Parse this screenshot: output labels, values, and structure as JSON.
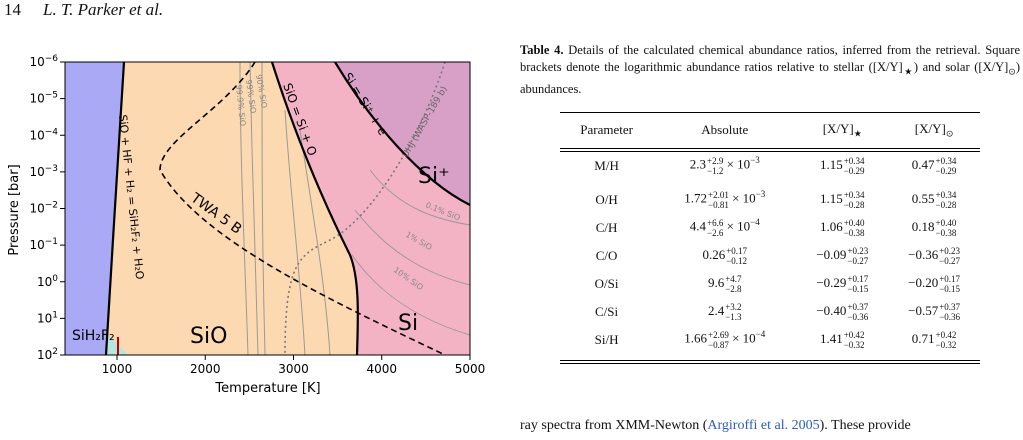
{
  "header": {
    "page": "14",
    "authors": "L. T. Parker et al."
  },
  "figure": {
    "x_label": "Temperature [K]",
    "y_label": "Pressure [bar]",
    "x_ticks": [
      "1000",
      "2000",
      "3000",
      "4000",
      "5000"
    ],
    "y_ticks": [
      {
        "base": "10",
        "exp": "−6"
      },
      {
        "base": "10",
        "exp": "−5"
      },
      {
        "base": "10",
        "exp": "−4"
      },
      {
        "base": "10",
        "exp": "−3"
      },
      {
        "base": "10",
        "exp": "−2"
      },
      {
        "base": "10",
        "exp": "−1"
      },
      {
        "base": "10",
        "exp": "0"
      },
      {
        "base": "10",
        "exp": "1"
      },
      {
        "base": "10",
        "exp": "2"
      }
    ],
    "region_labels": {
      "sih2f2": "SiH₂F₂",
      "sio": "SiO",
      "si": "Si",
      "si_plus": "Si⁺"
    },
    "curve_labels": {
      "reaction_f": "SiO + HF + H₂ = SiH₂F₂ + H₂O",
      "twa": "TWA 5 B",
      "reaction_o": "SiO = Si + O",
      "reaction_ion": "Si = Si⁺ + e⁻",
      "uhj": "UHJ (WASP-189 b)"
    },
    "contour_labels": [
      "90% SiO",
      "99% SiO",
      "99.9% SiO",
      "0.1% SiO",
      "1% SiO",
      "10% SiO"
    ]
  },
  "table": {
    "caption": {
      "label": "Table 4.",
      "text": [
        "Details of the calculated chemical abundance ratios, inferred from the retrieval. Square brackets denote the logarithmic abundance ratios relative to stellar ([X/Y]",
        "★",
        ") and solar ([X/Y]",
        "⊙",
        ") abundances."
      ]
    },
    "columns": [
      {
        "text": "Parameter"
      },
      {
        "text": "Absolute"
      },
      {
        "text": "[X/Y]",
        "sub": "★"
      },
      {
        "text": "[X/Y]",
        "sub": "⊙"
      }
    ],
    "rows": [
      {
        "param": "M/H",
        "absolute": {
          "value": "2.3",
          "up": "+2.9",
          "down": "−1.2",
          "times": " × 10",
          "exp": "−3"
        },
        "star": {
          "value": "1.15",
          "up": "+0.34",
          "down": "−0.29"
        },
        "sun": {
          "value": "0.47",
          "up": "+0.34",
          "down": "−0.29"
        }
      },
      {
        "param": "O/H",
        "absolute": {
          "value": "1.72",
          "up": "+2.01",
          "down": "−0.81",
          "times": " × 10",
          "exp": "−3"
        },
        "star": {
          "value": "1.15",
          "up": "+0.34",
          "down": "−0.28"
        },
        "sun": {
          "value": "0.55",
          "up": "+0.34",
          "down": "−0.28"
        }
      },
      {
        "param": "C/H",
        "absolute": {
          "value": "4.4",
          "up": "+6.6",
          "down": "−2.6",
          "times": " × 10",
          "exp": "−4"
        },
        "star": {
          "value": "1.06",
          "up": "+0.40",
          "down": "−0.38"
        },
        "sun": {
          "value": "0.18",
          "up": "+0.40",
          "down": "−0.38"
        }
      },
      {
        "param": "C/O",
        "absolute": {
          "value": "0.26",
          "up": "+0.17",
          "down": "−0.12"
        },
        "star": {
          "value": "−0.09",
          "up": "+0.23",
          "down": "−0.27"
        },
        "sun": {
          "value": "−0.36",
          "up": "+0.23",
          "down": "−0.27"
        }
      },
      {
        "param": "O/Si",
        "absolute": {
          "value": "9.6",
          "up": "+4.7",
          "down": "−2.8"
        },
        "star": {
          "value": "−0.29",
          "up": "+0.17",
          "down": "−0.15"
        },
        "sun": {
          "value": "−0.20",
          "up": "+0.17",
          "down": "−0.15"
        }
      },
      {
        "param": "C/Si",
        "absolute": {
          "value": "2.4",
          "up": "+3.2",
          "down": "−1.3"
        },
        "star": {
          "value": "−0.40",
          "up": "+0.37",
          "down": "−0.36"
        },
        "sun": {
          "value": "−0.57",
          "up": "+0.37",
          "down": "−0.36"
        }
      },
      {
        "param": "Si/H",
        "absolute": {
          "value": "1.66",
          "up": "+2.69",
          "down": "−0.87",
          "times": " × 10",
          "exp": "−4"
        },
        "star": {
          "value": "1.41",
          "up": "+0.42",
          "down": "−0.32"
        },
        "sun": {
          "value": "0.71",
          "up": "+0.42",
          "down": "−0.32"
        }
      }
    ]
  },
  "body": {
    "before": "ray spectra from XMM-Newton (",
    "citation": "Argiroffi et al. 2005",
    "after": "). These provide"
  }
}
